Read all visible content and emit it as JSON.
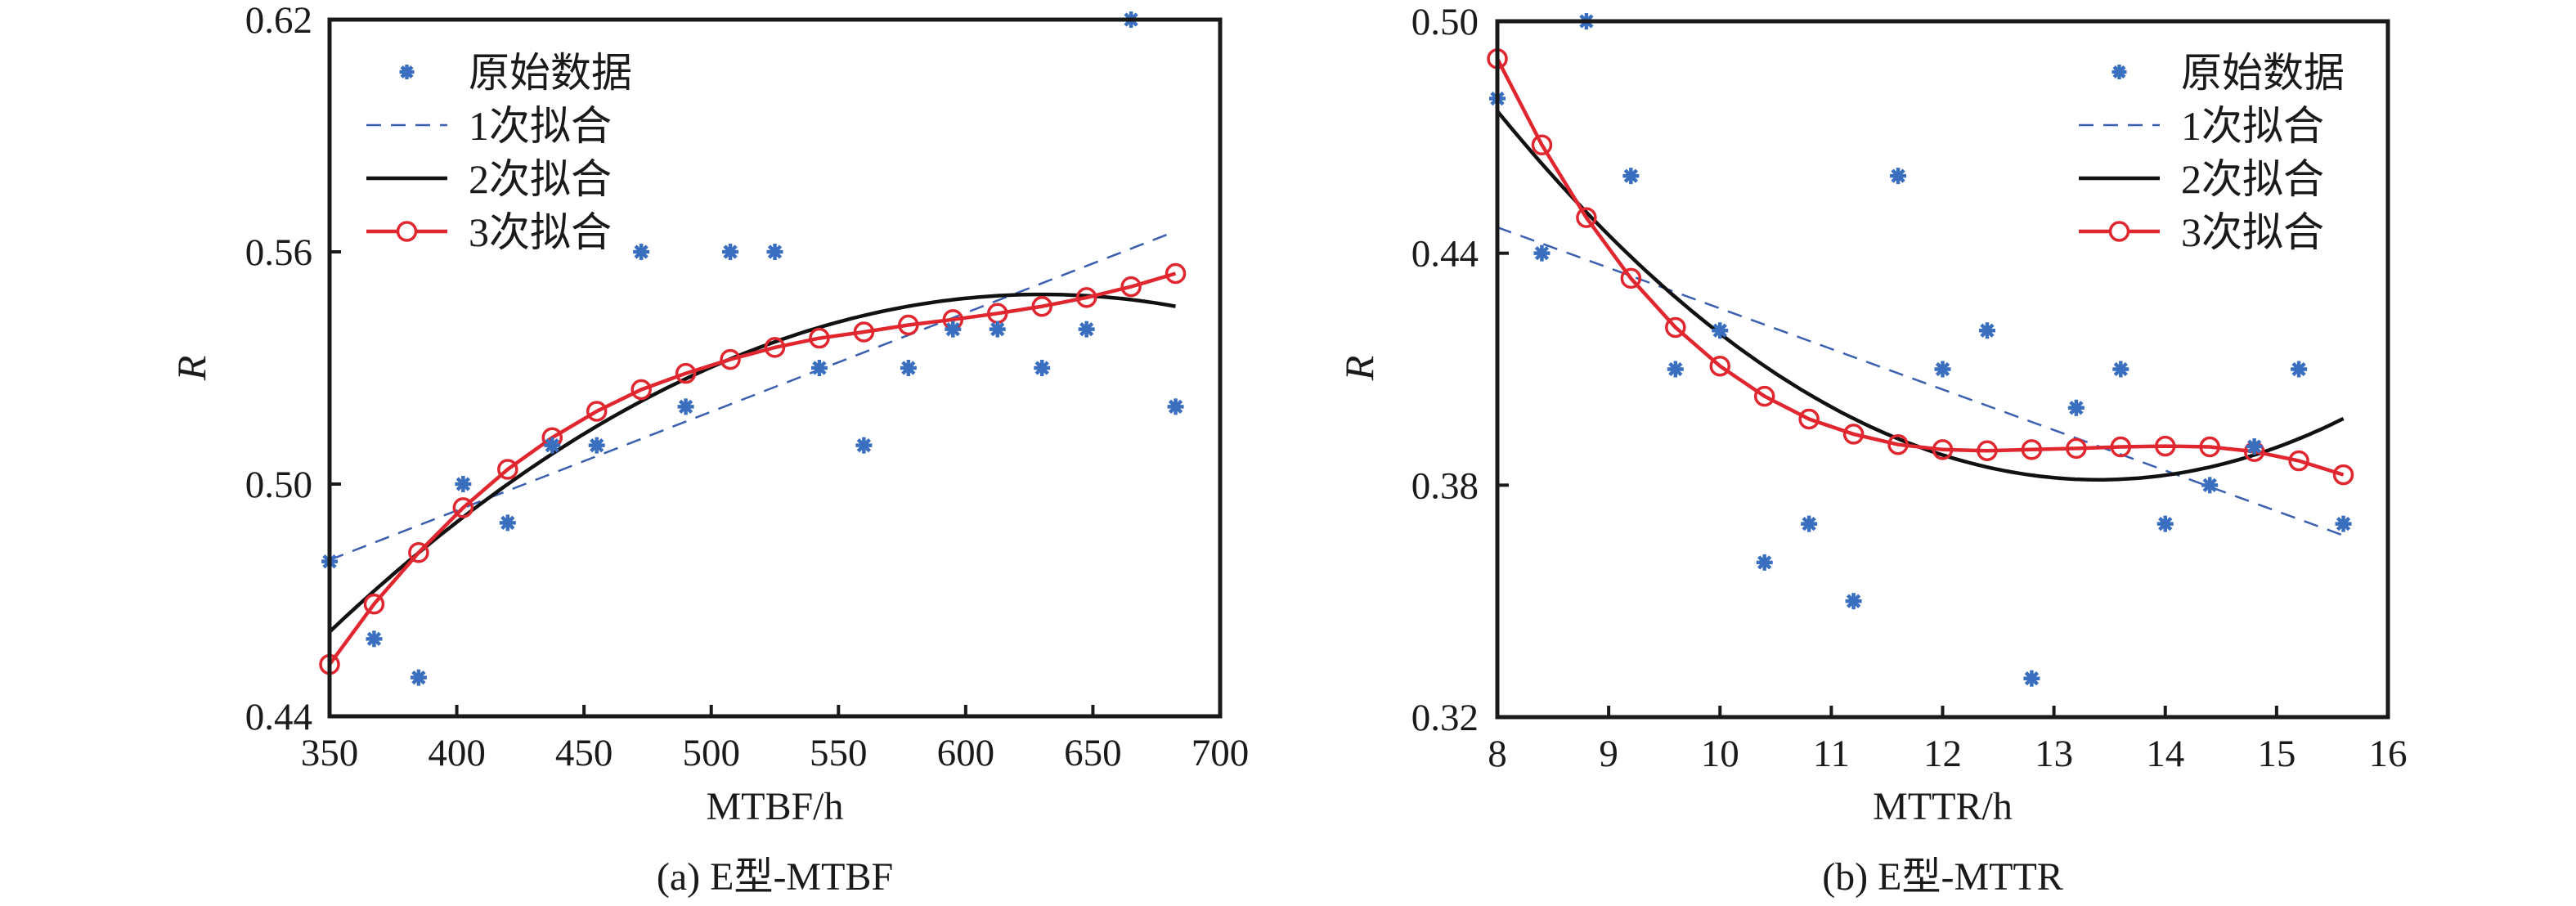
{
  "colors": {
    "data": "#3a6fc0",
    "fit1": "#3a5fb0",
    "fit2": "#111111",
    "fit3": "#e0262f",
    "axis": "#1a1a1a"
  },
  "legend_labels": [
    "原始数据",
    "1次拟合",
    "2次拟合",
    "3次拟合"
  ],
  "chart_data": [
    {
      "type": "scatter+line",
      "caption": "(a) E型-MTBF",
      "xlabel": "MTBF/h",
      "ylabel": "R",
      "xlim": [
        350,
        700
      ],
      "ylim": [
        0.44,
        0.62
      ],
      "xticks": [
        "350",
        "400",
        "450",
        "500",
        "550",
        "600",
        "650",
        "700"
      ],
      "yticks": [
        "0.44",
        "0.50",
        "0.56",
        "0.62"
      ],
      "legend_position": "top-left",
      "x": [
        350,
        367.5,
        385,
        402.5,
        420,
        437.5,
        455,
        472.5,
        490,
        507.5,
        525,
        542.5,
        560,
        577.5,
        595,
        612.5,
        630,
        647.5,
        665,
        682.5
      ],
      "series": [
        {
          "name": "原始数据",
          "style": "markers-asterisk",
          "values": [
            0.48,
            0.46,
            0.45,
            0.5,
            0.49,
            0.51,
            0.51,
            0.56,
            0.52,
            0.56,
            0.56,
            0.53,
            0.51,
            0.53,
            0.54,
            0.54,
            0.53,
            0.54,
            0.62,
            0.52
          ]
        },
        {
          "name": "1次拟合",
          "style": "dashed",
          "x_range": [
            350,
            682.5
          ],
          "values_at_range": [
            0.4804,
            0.5653
          ]
        },
        {
          "name": "2次拟合",
          "style": "solid",
          "quadratic": {
            "vertex_x": 630,
            "vertex_y": 0.549,
            "a": -1.112e-06
          }
        },
        {
          "name": "3次拟合",
          "style": "line-circle",
          "values": [
            0.4534,
            0.469,
            0.4823,
            0.4939,
            0.5038,
            0.512,
            0.5188,
            0.5244,
            0.5286,
            0.5322,
            0.5353,
            0.5377,
            0.5393,
            0.5411,
            0.5425,
            0.5441,
            0.5459,
            0.5482,
            0.551,
            0.5544
          ]
        }
      ]
    },
    {
      "type": "scatter+line",
      "caption": "(b) E型-MTTR",
      "xlabel": "MTTR/h",
      "ylabel": "R",
      "xlim": [
        8,
        16
      ],
      "ylim": [
        0.32,
        0.5
      ],
      "xticks": [
        "8",
        "9",
        "10",
        "11",
        "12",
        "13",
        "14",
        "15",
        "16"
      ],
      "yticks": [
        "0.32",
        "0.38",
        "0.44",
        "0.50"
      ],
      "legend_position": "top-right",
      "x": [
        8.0,
        8.4,
        8.8,
        9.2,
        9.6,
        10.0,
        10.4,
        10.8,
        11.2,
        11.6,
        12.0,
        12.4,
        12.8,
        13.2,
        13.6,
        14.0,
        14.4,
        14.8,
        15.2,
        15.6
      ],
      "series": [
        {
          "name": "原始数据",
          "style": "markers-asterisk",
          "values": [
            0.48,
            0.44,
            0.5,
            0.46,
            0.41,
            0.42,
            0.36,
            0.37,
            0.35,
            0.46,
            0.41,
            0.42,
            0.33,
            0.4,
            0.41,
            0.37,
            0.38,
            0.39,
            0.41,
            0.37
          ]
        },
        {
          "name": "1次拟合",
          "style": "dashed",
          "x_range": [
            8.0,
            15.6
          ],
          "values_at_range": [
            0.4467,
            0.367
          ]
        },
        {
          "name": "2次拟合",
          "style": "solid",
          "quadratic": {
            "vertex_x": 13.4,
            "vertex_y": 0.3814,
            "a": 0.00327
          }
        },
        {
          "name": "3次拟合",
          "style": "line-circle",
          "values": [
            0.4903,
            0.468,
            0.4492,
            0.4335,
            0.4208,
            0.4108,
            0.403,
            0.3971,
            0.3932,
            0.3905,
            0.3892,
            0.3889,
            0.3892,
            0.3895,
            0.3899,
            0.3901,
            0.3899,
            0.3887,
            0.3863,
            0.3827
          ]
        }
      ]
    }
  ]
}
